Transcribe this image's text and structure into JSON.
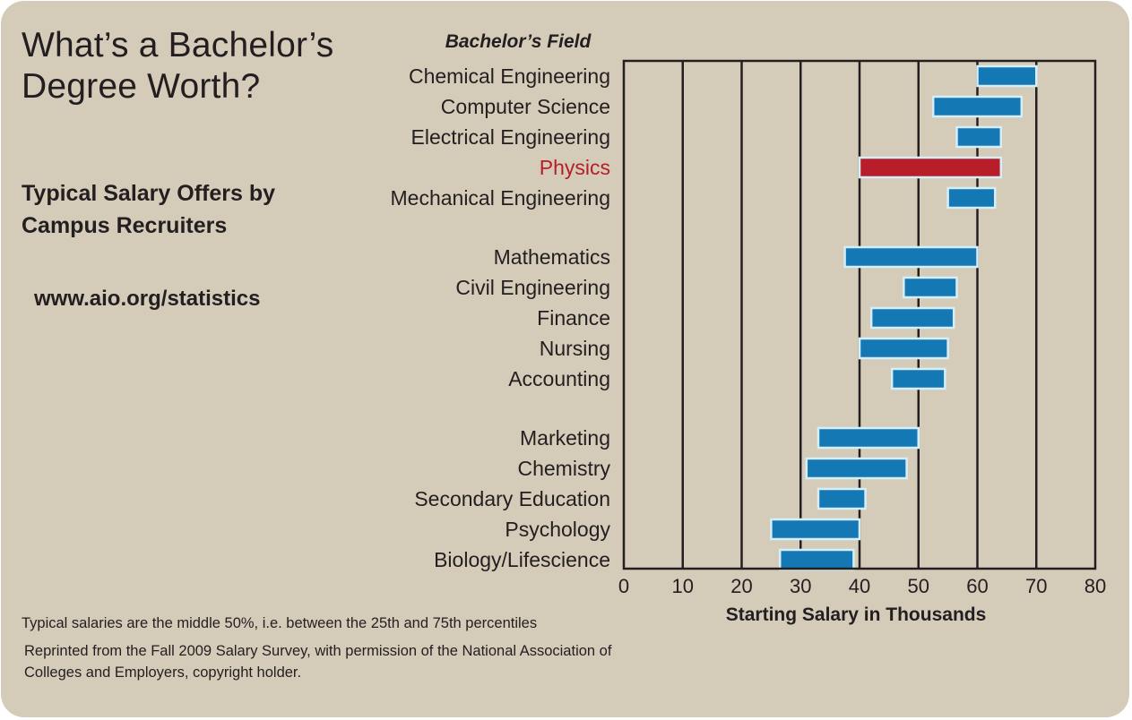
{
  "heading": {
    "line1": "What’s a Bachelor’s",
    "line2": "Degree Worth?"
  },
  "subheading": {
    "line1": "Typical Salary Offers by",
    "line2": "Campus Recruiters"
  },
  "url": "www.aio.org/statistics",
  "footnotes": {
    "percentile_note": "Typical salaries are the middle 50%, i.e. between the 25th and 75th percentiles",
    "source_line1": "Reprinted from the Fall 2009 Salary Survey, with permission of the National Association of",
    "source_line2": "Colleges and Employers, copyright holder."
  },
  "colors": {
    "background": "#d4cbb9",
    "bar": "#1478b4",
    "bar_outline": "#d6eef8",
    "highlight_bar": "#b71e29",
    "highlight_label": "#b71e29",
    "text": "#231f20"
  },
  "chart_data": {
    "type": "range-bar",
    "category_axis_title": "Bachelor’s Field",
    "xlabel": "Starting Salary in Thousands",
    "xlim": [
      0,
      80
    ],
    "xticks": [
      0,
      10,
      20,
      30,
      40,
      50,
      60,
      70,
      80
    ],
    "grid": "vertical lines every 10",
    "highlight": "Physics",
    "groups": [
      {
        "items": [
          {
            "field": "Chemical Engineering",
            "low": 60,
            "high": 70
          },
          {
            "field": "Computer Science",
            "low": 52.5,
            "high": 67.5
          },
          {
            "field": "Electrical Engineering",
            "low": 56.5,
            "high": 64
          },
          {
            "field": "Physics",
            "low": 40,
            "high": 64
          },
          {
            "field": "Mechanical Engineering",
            "low": 55,
            "high": 63
          }
        ]
      },
      {
        "items": [
          {
            "field": "Mathematics",
            "low": 37.5,
            "high": 60
          },
          {
            "field": "Civil Engineering",
            "low": 47.5,
            "high": 56.5
          },
          {
            "field": "Finance",
            "low": 42,
            "high": 56
          },
          {
            "field": "Nursing",
            "low": 40,
            "high": 55
          },
          {
            "field": "Accounting",
            "low": 45.5,
            "high": 54.5
          }
        ]
      },
      {
        "items": [
          {
            "field": "Marketing",
            "low": 33,
            "high": 50
          },
          {
            "field": "Chemistry",
            "low": 31,
            "high": 48
          },
          {
            "field": "Secondary Education",
            "low": 33,
            "high": 41
          },
          {
            "field": "Psychology",
            "low": 25,
            "high": 40
          },
          {
            "field": "Biology/Lifescience",
            "low": 26.5,
            "high": 39
          }
        ]
      }
    ]
  }
}
